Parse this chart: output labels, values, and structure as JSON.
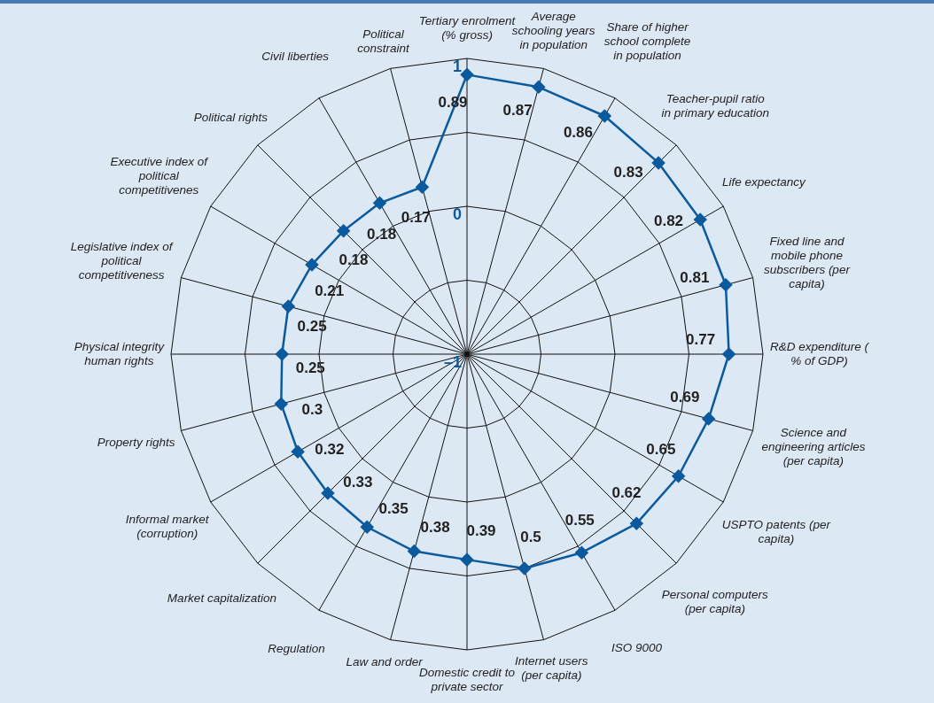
{
  "chart_data": {
    "type": "radar",
    "categories": [
      "Tertiary enrolment (% gross)",
      "Average schooling years in population",
      "Share of higher school complete in population",
      "Teacher-pupil ratio in primary education",
      "Life expectancy",
      "Fixed line and mobile phone subscribers (per capita)",
      "R&D expenditure ( % of GDP)",
      "Science and engineering articles (per capita)",
      "USPTO patents (per capita)",
      "Personal computers (per capita)",
      "ISO 9000",
      "Internet users (per capita)",
      "Domestic credit to private sector",
      "Law and order",
      "Regulation",
      "Market capitalization",
      "Informal market (corruption)",
      "Property rights",
      "Physical integrity human rights",
      "Legislative index of political competitiveness",
      "Executive index of political competitivenes",
      "Political rights",
      "Civil liberties",
      "Political constraint"
    ],
    "series": [
      {
        "color": "#0b5a9e",
        "values": [
          0.89,
          0.87,
          0.86,
          0.83,
          0.82,
          0.81,
          0.77,
          0.69,
          0.65,
          0.62,
          0.55,
          0.5,
          0.39,
          0.38,
          0.35,
          0.33,
          0.32,
          0.3,
          0.25,
          0.25,
          0.21,
          0.18,
          0.18,
          0.17
        ]
      }
    ],
    "ylim": [
      -1,
      1
    ],
    "yticks": [
      {
        "value": -1,
        "label": "–1"
      },
      {
        "value": 0,
        "label": "0"
      },
      {
        "value": 1,
        "label": "1"
      }
    ],
    "marker": "diamond",
    "data_labels": true,
    "grid": true
  }
}
